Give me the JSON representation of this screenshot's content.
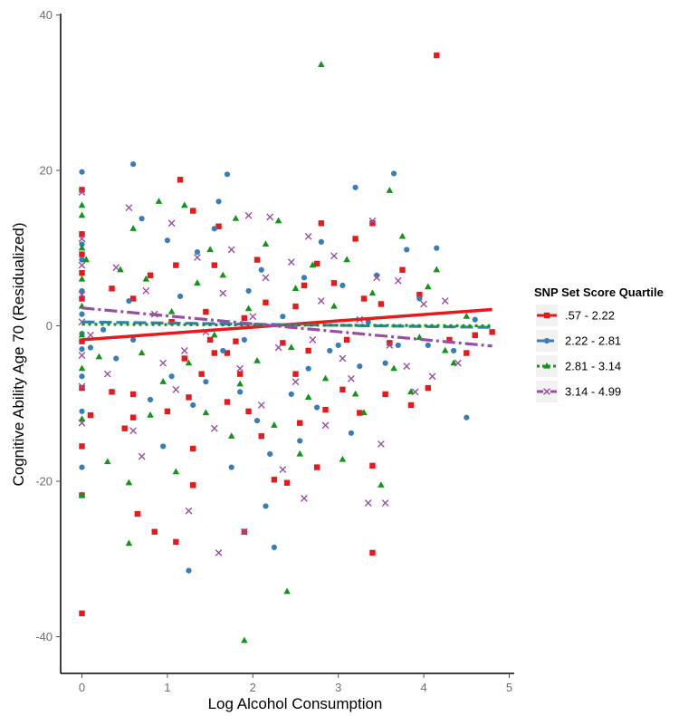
{
  "chart_data": {
    "type": "scatter",
    "title": "",
    "xlabel": "Log Alcohol Consumption",
    "ylabel": "Cognitive Ability Age 70 (Residualized)",
    "xlim": [
      -0.25,
      5.0
    ],
    "ylim": [
      -45,
      40
    ],
    "xticks": [
      "0",
      "1",
      "2",
      "3",
      "4",
      "5"
    ],
    "yticks": [
      "40",
      "20",
      "0",
      "-20",
      "-40"
    ],
    "grid": false,
    "legend": {
      "title": "SNP Set Score Quartile",
      "position": "right"
    },
    "series": [
      {
        "name": ".57 - 2.22",
        "color": "#e41a1c",
        "marker": "square",
        "line": "solid",
        "fit": [
          [
            0,
            -1.8
          ],
          [
            4.8,
            2.1
          ]
        ],
        "points": [
          [
            0,
            -37
          ],
          [
            0,
            -21.8
          ],
          [
            0,
            -15.5
          ],
          [
            0,
            -8
          ],
          [
            0,
            -2
          ],
          [
            0,
            3.5
          ],
          [
            0,
            6.8
          ],
          [
            0,
            9.2
          ],
          [
            0,
            11.8
          ],
          [
            0,
            17.5
          ],
          [
            0.1,
            -11.5
          ],
          [
            0.35,
            4.8
          ],
          [
            0.35,
            -8.5
          ],
          [
            0.5,
            -13.2
          ],
          [
            0.6,
            -8.8
          ],
          [
            0.6,
            -11.8
          ],
          [
            0.6,
            3.5
          ],
          [
            0.65,
            -24.2
          ],
          [
            0.8,
            6.5
          ],
          [
            0.85,
            -26.5
          ],
          [
            1.0,
            -11
          ],
          [
            1.05,
            0.5
          ],
          [
            1.1,
            -27.8
          ],
          [
            1.1,
            7.8
          ],
          [
            1.15,
            18.8
          ],
          [
            1.2,
            -4.2
          ],
          [
            1.25,
            -9.2
          ],
          [
            1.3,
            14.8
          ],
          [
            1.3,
            -20.5
          ],
          [
            1.3,
            -15.8
          ],
          [
            1.4,
            -6.2
          ],
          [
            1.45,
            1.8
          ],
          [
            1.5,
            -1.8
          ],
          [
            1.55,
            7.8
          ],
          [
            1.55,
            -3.5
          ],
          [
            1.6,
            12.8
          ],
          [
            1.7,
            -3.5
          ],
          [
            1.7,
            -9.8
          ],
          [
            1.8,
            -2
          ],
          [
            1.85,
            -6.2
          ],
          [
            1.9,
            -26.5
          ],
          [
            1.9,
            1
          ],
          [
            1.95,
            -11
          ],
          [
            2.05,
            8.5
          ],
          [
            2.1,
            -14.2
          ],
          [
            2.15,
            3
          ],
          [
            2.25,
            -19.8
          ],
          [
            2.35,
            -2.2
          ],
          [
            2.4,
            -20.2
          ],
          [
            2.5,
            2.5
          ],
          [
            2.5,
            -6.2
          ],
          [
            2.55,
            -12.5
          ],
          [
            2.6,
            5.2
          ],
          [
            2.65,
            -3.2
          ],
          [
            2.75,
            8
          ],
          [
            2.75,
            -18.2
          ],
          [
            2.8,
            13.2
          ],
          [
            2.85,
            -10.8
          ],
          [
            2.95,
            5.5
          ],
          [
            3.05,
            -8.2
          ],
          [
            3.1,
            -1.8
          ],
          [
            3.2,
            11.2
          ],
          [
            3.25,
            -11.2
          ],
          [
            3.3,
            3.5
          ],
          [
            3.4,
            13.2
          ],
          [
            3.4,
            -18
          ],
          [
            3.4,
            -29.2
          ],
          [
            3.5,
            2.8
          ],
          [
            3.55,
            -8.8
          ],
          [
            3.6,
            -2.2
          ],
          [
            3.75,
            7.2
          ],
          [
            3.85,
            -10.2
          ],
          [
            3.95,
            4
          ],
          [
            4.05,
            -8
          ],
          [
            4.15,
            34.8
          ],
          [
            4.3,
            -1.8
          ],
          [
            4.5,
            -3.5
          ],
          [
            4.6,
            -1.2
          ],
          [
            4.8,
            -0.8
          ]
        ]
      },
      {
        "name": "2.22 - 2.81",
        "color": "#377eb8",
        "marker": "circle",
        "line": "dashed",
        "fit": [
          [
            0,
            0.5
          ],
          [
            4.8,
            -0.2
          ]
        ],
        "points": [
          [
            0,
            -18.2
          ],
          [
            0,
            -11
          ],
          [
            0,
            -6.5
          ],
          [
            0,
            -3
          ],
          [
            0,
            -1
          ],
          [
            0,
            1.5
          ],
          [
            0,
            4.5
          ],
          [
            0,
            8.5
          ],
          [
            0,
            10.5
          ],
          [
            0,
            19.8
          ],
          [
            0.1,
            -2.8
          ],
          [
            0.25,
            -0.5
          ],
          [
            0.4,
            -4.2
          ],
          [
            0.55,
            3.2
          ],
          [
            0.6,
            20.8
          ],
          [
            0.6,
            -1.8
          ],
          [
            0.7,
            13.8
          ],
          [
            0.8,
            -9.5
          ],
          [
            0.95,
            -15.5
          ],
          [
            1.0,
            11
          ],
          [
            1.05,
            -6.5
          ],
          [
            1.15,
            3.8
          ],
          [
            1.25,
            -31.5
          ],
          [
            1.3,
            -10.2
          ],
          [
            1.35,
            9.5
          ],
          [
            1.45,
            -7.2
          ],
          [
            1.55,
            12.5
          ],
          [
            1.6,
            16
          ],
          [
            1.65,
            -3.2
          ],
          [
            1.7,
            19.5
          ],
          [
            1.75,
            -18.2
          ],
          [
            1.85,
            -8.5
          ],
          [
            1.9,
            -1.8
          ],
          [
            1.95,
            4.5
          ],
          [
            2.05,
            -12.2
          ],
          [
            2.1,
            7.2
          ],
          [
            2.15,
            -23.2
          ],
          [
            2.2,
            -16.5
          ],
          [
            2.25,
            -28.5
          ],
          [
            2.35,
            1.2
          ],
          [
            2.45,
            -8.8
          ],
          [
            2.55,
            -14.8
          ],
          [
            2.6,
            6.2
          ],
          [
            2.65,
            -5.5
          ],
          [
            2.75,
            -10.5
          ],
          [
            2.8,
            10.8
          ],
          [
            2.9,
            -3.2
          ],
          [
            3.0,
            -2.5
          ],
          [
            3.05,
            5.2
          ],
          [
            3.15,
            -13.8
          ],
          [
            3.2,
            17.8
          ],
          [
            3.25,
            -5.2
          ],
          [
            3.35,
            0.5
          ],
          [
            3.45,
            6.5
          ],
          [
            3.55,
            -4.8
          ],
          [
            3.65,
            19.6
          ],
          [
            3.7,
            -2.5
          ],
          [
            3.8,
            9.8
          ],
          [
            3.95,
            3.5
          ],
          [
            4.05,
            -2.5
          ],
          [
            4.15,
            10
          ],
          [
            4.35,
            -3.2
          ],
          [
            4.5,
            -11.8
          ],
          [
            4.6,
            0.8
          ]
        ]
      },
      {
        "name": "2.81 - 3.14",
        "color": "#109618",
        "marker": "triangle",
        "line": "dotted",
        "fit": [
          [
            0,
            0.2
          ],
          [
            4.8,
            0.0
          ]
        ],
        "points": [
          [
            0,
            -21.8
          ],
          [
            0,
            -12
          ],
          [
            0,
            -5.5
          ],
          [
            0,
            -1.2
          ],
          [
            0,
            2.5
          ],
          [
            0,
            6
          ],
          [
            0,
            10
          ],
          [
            0,
            14.2
          ],
          [
            0,
            15.5
          ],
          [
            0.05,
            8.5
          ],
          [
            0.2,
            -4
          ],
          [
            0.3,
            -17.5
          ],
          [
            0.45,
            7.2
          ],
          [
            0.55,
            -28
          ],
          [
            0.55,
            -20.2
          ],
          [
            0.6,
            12.5
          ],
          [
            0.7,
            -3.5
          ],
          [
            0.75,
            6
          ],
          [
            0.8,
            -11.5
          ],
          [
            0.9,
            16
          ],
          [
            0.95,
            -7.2
          ],
          [
            1.05,
            1.8
          ],
          [
            1.1,
            -18.8
          ],
          [
            1.2,
            15.5
          ],
          [
            1.25,
            -4.8
          ],
          [
            1.35,
            5.5
          ],
          [
            1.45,
            -11.2
          ],
          [
            1.5,
            9.8
          ],
          [
            1.55,
            -1.2
          ],
          [
            1.65,
            6.5
          ],
          [
            1.75,
            -14.2
          ],
          [
            1.8,
            13.8
          ],
          [
            1.85,
            -7.5
          ],
          [
            1.9,
            -40.5
          ],
          [
            1.95,
            2.2
          ],
          [
            2.05,
            -4.5
          ],
          [
            2.15,
            10.5
          ],
          [
            2.25,
            -12.8
          ],
          [
            2.3,
            13.5
          ],
          [
            2.4,
            -34.2
          ],
          [
            2.45,
            -2.8
          ],
          [
            2.5,
            4.8
          ],
          [
            2.55,
            -16.5
          ],
          [
            2.65,
            -9.2
          ],
          [
            2.7,
            7.8
          ],
          [
            2.8,
            33.6
          ],
          [
            2.85,
            -6.8
          ],
          [
            2.95,
            2.5
          ],
          [
            3.05,
            -17.2
          ],
          [
            3.1,
            8.5
          ],
          [
            3.2,
            -8.8
          ],
          [
            3.3,
            -11.2
          ],
          [
            3.4,
            4.2
          ],
          [
            3.5,
            -20.5
          ],
          [
            3.6,
            17.4
          ],
          [
            3.65,
            -5.5
          ],
          [
            3.75,
            11.5
          ],
          [
            3.85,
            -8.5
          ],
          [
            3.95,
            -1.5
          ],
          [
            4.05,
            5
          ],
          [
            4.15,
            7.2
          ],
          [
            4.25,
            -3.2
          ],
          [
            4.35,
            -4.8
          ],
          [
            4.5,
            1.2
          ]
        ]
      },
      {
        "name": "3.14 - 4.99",
        "color": "#984ea3",
        "marker": "x",
        "line": "dashdot",
        "fit": [
          [
            0,
            2.3
          ],
          [
            4.8,
            -2.6
          ]
        ],
        "points": [
          [
            0,
            -12.5
          ],
          [
            0,
            -7.8
          ],
          [
            0,
            -3.8
          ],
          [
            0,
            0.5
          ],
          [
            0,
            4
          ],
          [
            0,
            7.8
          ],
          [
            0,
            11.2
          ],
          [
            0,
            17.2
          ],
          [
            0.1,
            -1.2
          ],
          [
            0.3,
            -6.2
          ],
          [
            0.4,
            7.5
          ],
          [
            0.55,
            15.2
          ],
          [
            0.6,
            -13.5
          ],
          [
            0.7,
            -16.8
          ],
          [
            0.75,
            4.5
          ],
          [
            0.85,
            1.5
          ],
          [
            0.95,
            -4.8
          ],
          [
            1.05,
            13.2
          ],
          [
            1.1,
            -8.2
          ],
          [
            1.2,
            -3.2
          ],
          [
            1.25,
            -23.8
          ],
          [
            1.35,
            8.8
          ],
          [
            1.45,
            -0.8
          ],
          [
            1.55,
            -13.2
          ],
          [
            1.6,
            -29.2
          ],
          [
            1.65,
            4.2
          ],
          [
            1.75,
            9.8
          ],
          [
            1.85,
            -5.5
          ],
          [
            1.9,
            -26.5
          ],
          [
            1.95,
            14.2
          ],
          [
            2.0,
            1.2
          ],
          [
            2.1,
            -10.2
          ],
          [
            2.15,
            6.2
          ],
          [
            2.2,
            14
          ],
          [
            2.3,
            -2.8
          ],
          [
            2.35,
            -18.5
          ],
          [
            2.45,
            8.2
          ],
          [
            2.5,
            -7.2
          ],
          [
            2.6,
            -22.2
          ],
          [
            2.65,
            11.5
          ],
          [
            2.7,
            -1.8
          ],
          [
            2.8,
            3.2
          ],
          [
            2.85,
            -12.8
          ],
          [
            2.95,
            9
          ],
          [
            3.05,
            -4.2
          ],
          [
            3.15,
            -6.8
          ],
          [
            3.25,
            0.8
          ],
          [
            3.35,
            -22.8
          ],
          [
            3.4,
            13.5
          ],
          [
            3.45,
            6.2
          ],
          [
            3.5,
            -15.2
          ],
          [
            3.55,
            -22.8
          ],
          [
            3.6,
            -2.5
          ],
          [
            3.7,
            5.8
          ],
          [
            3.8,
            -5.2
          ],
          [
            3.9,
            -8.5
          ],
          [
            4.0,
            2.8
          ],
          [
            4.1,
            -6.5
          ],
          [
            4.25,
            3.2
          ],
          [
            4.4,
            -4.8
          ]
        ]
      }
    ]
  }
}
